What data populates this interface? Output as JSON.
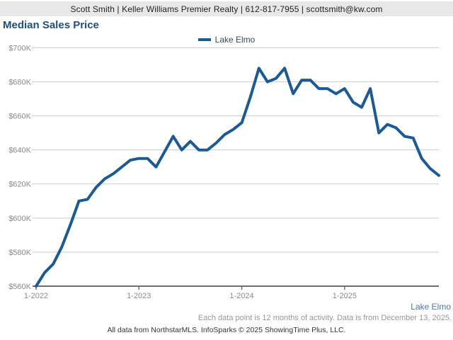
{
  "header": {
    "contact_line": "Scott Smith | Keller Williams Premier Realty | 612-817-7955 | scottsmith@kw.com"
  },
  "title": "Median Sales Price",
  "legend": {
    "label": "Lake Elmo"
  },
  "footer": {
    "series_label": "Lake Elmo",
    "note": "Each data point is 12 months of activity. Data is from December 13, 2025.",
    "attribution": "All data from NorthstarMLS. InfoSparks © 2025 ShowingTime Plus, LLC."
  },
  "colors": {
    "line": "#1a5a96",
    "title": "#205081",
    "header_bg": "#e8e8e8",
    "gridline": "#cccccc",
    "axis": "#6e6e6e",
    "tick_label": "#8a8a8a",
    "series_footnote": "#4878a8",
    "note": "#979797",
    "attribution": "#333333"
  },
  "chart_data": {
    "type": "line",
    "title": "Median Sales Price",
    "unit": "USD thousands",
    "grid": true,
    "legend_position": "top-center",
    "ylim": [
      560,
      700
    ],
    "ylabel": "",
    "xlabel": "",
    "y_ticks": [
      {
        "value": 560,
        "label": "$560K"
      },
      {
        "value": 580,
        "label": "$580K"
      },
      {
        "value": 600,
        "label": "$600K"
      },
      {
        "value": 620,
        "label": "$620K"
      },
      {
        "value": 640,
        "label": "$640K"
      },
      {
        "value": 660,
        "label": "$660K"
      },
      {
        "value": 680,
        "label": "$680K"
      },
      {
        "value": 700,
        "label": "$700K"
      }
    ],
    "x_ticks": [
      {
        "index": 0,
        "label": "1-2022"
      },
      {
        "index": 12,
        "label": "1-2023"
      },
      {
        "index": 24,
        "label": "1-2024"
      },
      {
        "index": 36,
        "label": "1-2025"
      }
    ],
    "categories": [
      "1-2022",
      "2-2022",
      "3-2022",
      "4-2022",
      "5-2022",
      "6-2022",
      "7-2022",
      "8-2022",
      "9-2022",
      "10-2022",
      "11-2022",
      "12-2022",
      "1-2023",
      "2-2023",
      "3-2023",
      "4-2023",
      "5-2023",
      "6-2023",
      "7-2023",
      "8-2023",
      "9-2023",
      "10-2023",
      "11-2023",
      "12-2023",
      "1-2024",
      "2-2024",
      "3-2024",
      "4-2024",
      "5-2024",
      "6-2024",
      "7-2024",
      "8-2024",
      "9-2024",
      "10-2024",
      "11-2024",
      "12-2024",
      "1-2025",
      "2-2025",
      "3-2025",
      "4-2025",
      "5-2025",
      "6-2025",
      "7-2025",
      "8-2025",
      "9-2025",
      "10-2025",
      "11-2025",
      "12-2025"
    ],
    "series": [
      {
        "name": "Lake Elmo",
        "values": [
          560,
          568,
          573,
          583,
          596,
          610,
          611,
          618,
          623,
          626,
          630,
          634,
          635,
          635,
          630,
          639,
          648,
          640,
          645,
          640,
          640,
          644,
          649,
          652,
          656,
          671,
          688,
          680,
          682,
          688,
          673,
          681,
          681,
          676,
          676,
          673,
          676,
          668,
          665,
          676,
          650,
          655,
          653,
          648,
          647,
          635,
          629,
          625
        ]
      }
    ]
  }
}
